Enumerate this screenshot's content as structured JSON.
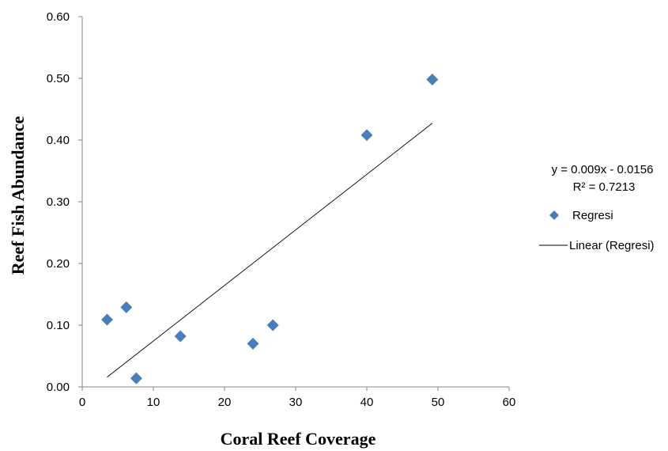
{
  "chart_data": {
    "type": "scatter",
    "title": "",
    "xlabel": "Coral Reef Coverage",
    "ylabel": "Reef Fish Abundance",
    "xlim": [
      0,
      60
    ],
    "ylim": [
      0,
      0.6
    ],
    "x_ticks": [
      "0",
      "10",
      "20",
      "30",
      "40",
      "50",
      "60"
    ],
    "y_ticks": [
      "0.00",
      "0.10",
      "0.20",
      "0.30",
      "0.40",
      "0.50",
      "0.60"
    ],
    "grid": false,
    "legend_position": "right",
    "series": [
      {
        "name": "Regresi",
        "marker": "diamond",
        "color": "#4a7ebb",
        "points": [
          {
            "x": 3.5,
            "y": 0.109
          },
          {
            "x": 6.2,
            "y": 0.129
          },
          {
            "x": 7.6,
            "y": 0.014
          },
          {
            "x": 13.8,
            "y": 0.082
          },
          {
            "x": 24.0,
            "y": 0.07
          },
          {
            "x": 26.8,
            "y": 0.1
          },
          {
            "x": 40.0,
            "y": 0.408
          },
          {
            "x": 49.2,
            "y": 0.498
          }
        ]
      }
    ],
    "trendline": {
      "name": "Linear (Regresi)",
      "type": "linear",
      "color": "#000000",
      "slope": 0.009,
      "intercept": -0.0156,
      "x_range": [
        3.5,
        49.2
      ]
    },
    "annotations": {
      "equation": "y = 0.009x - 0.0156",
      "r_squared": "R² = 0.7213"
    }
  }
}
